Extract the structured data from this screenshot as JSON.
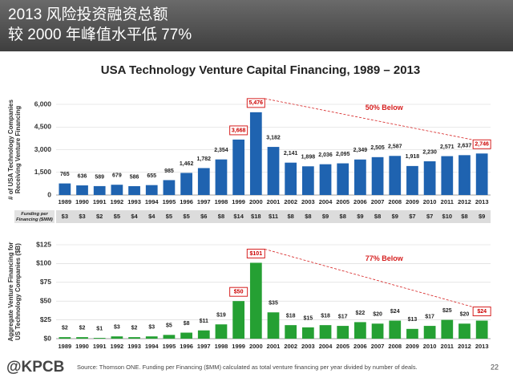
{
  "header": {
    "title_lines": [
      "2013 风险投资融资总额",
      "较 2000 年峰值水平低 77%"
    ]
  },
  "chart_data": [
    {
      "type": "bar",
      "title": "USA Technology Venture Capital Financing, 1989 – 2013",
      "ylabel": [
        "# of USA Technology Companies",
        "Receiving Venture Financing"
      ],
      "categories": [
        "1989",
        "1990",
        "1991",
        "1992",
        "1993",
        "1994",
        "1995",
        "1996",
        "1997",
        "1998",
        "1999",
        "2000",
        "2001",
        "2002",
        "2003",
        "2004",
        "2005",
        "2006",
        "2007",
        "2008",
        "2009",
        "2010",
        "2011",
        "2012",
        "2013"
      ],
      "values": [
        765,
        636,
        589,
        679,
        586,
        655,
        985,
        1462,
        1782,
        2354,
        3668,
        5476,
        3182,
        2141,
        1898,
        2036,
        2095,
        2349,
        2505,
        2587,
        1918,
        2230,
        2571,
        2637,
        2746
      ],
      "value_labels": [
        "765",
        "636",
        "589",
        "679",
        "586",
        "655",
        "985",
        "1,462",
        "1,782",
        "2,354",
        "3,668",
        "5,476",
        "3,182",
        "2,141",
        "1,898",
        "2,036",
        "2,095",
        "2,349",
        "2,505",
        "2,587",
        "1,918",
        "2,230",
        "2,571",
        "2,637",
        "2,746"
      ],
      "color": "#1f63b0",
      "ylim": [
        0,
        6000
      ],
      "yticks": [
        0,
        {
          "value": 1500,
          "label": "1,500"
        },
        {
          "value": 3000,
          "label": "3,000"
        },
        {
          "value": 4500,
          "label": "4,500"
        },
        {
          "value": 6000,
          "label": "6,000"
        }
      ],
      "grid": true,
      "annotation": "50% Below",
      "funding_row": {
        "label": [
          "Funding per",
          "Financing ($MM)"
        ],
        "cells": [
          "$3",
          "$3",
          "$2",
          "$5",
          "$4",
          "$4",
          "$5",
          "$5",
          "$6",
          "$8",
          "$14",
          "$18",
          "$11",
          "$8",
          "$8",
          "$9",
          "$8",
          "$9",
          "$8",
          "$9",
          "$7",
          "$7",
          "$10",
          "$8",
          "$9"
        ]
      }
    },
    {
      "type": "bar",
      "ylabel": [
        "Aggregate Venture Financing for",
        "US Technology Companies ($B)"
      ],
      "categories": [
        "1989",
        "1990",
        "1991",
        "1992",
        "1993",
        "1994",
        "1995",
        "1996",
        "1997",
        "1998",
        "1999",
        "2000",
        "2001",
        "2002",
        "2003",
        "2004",
        "2005",
        "2006",
        "2007",
        "2008",
        "2009",
        "2010",
        "2011",
        "2012",
        "2013"
      ],
      "values": [
        2,
        2,
        1,
        3,
        2,
        3,
        5,
        8,
        11,
        19,
        50,
        101,
        35,
        18,
        15,
        18,
        17,
        22,
        20,
        24,
        13,
        17,
        25,
        20,
        24
      ],
      "value_labels": [
        "$2",
        "$2",
        "$1",
        "$3",
        "$2",
        "$3",
        "$5",
        "$8",
        "$11",
        "$19",
        "$50",
        "$101",
        "$35",
        "$18",
        "$15",
        "$18",
        "$17",
        "$22",
        "$20",
        "$24",
        "$13",
        "$17",
        "$25",
        "$20",
        "$24"
      ],
      "color": "#25a033",
      "ylim": [
        0,
        125
      ],
      "yticks": [
        {
          "value": 0,
          "label": "$0"
        },
        {
          "value": 25,
          "label": "$25"
        },
        {
          "value": 50,
          "label": "$50"
        },
        {
          "value": 75,
          "label": "$75"
        },
        {
          "value": 100,
          "label": "$100"
        },
        {
          "value": 125,
          "label": "$125"
        }
      ],
      "grid": true,
      "annotation": "77% Below"
    }
  ],
  "footer": {
    "logo": "@KPCB",
    "source": "Source: Thomson ONE. Funding per Financing ($MM) calculated as total venture financing per year divided by number of deals.",
    "page": "22"
  }
}
